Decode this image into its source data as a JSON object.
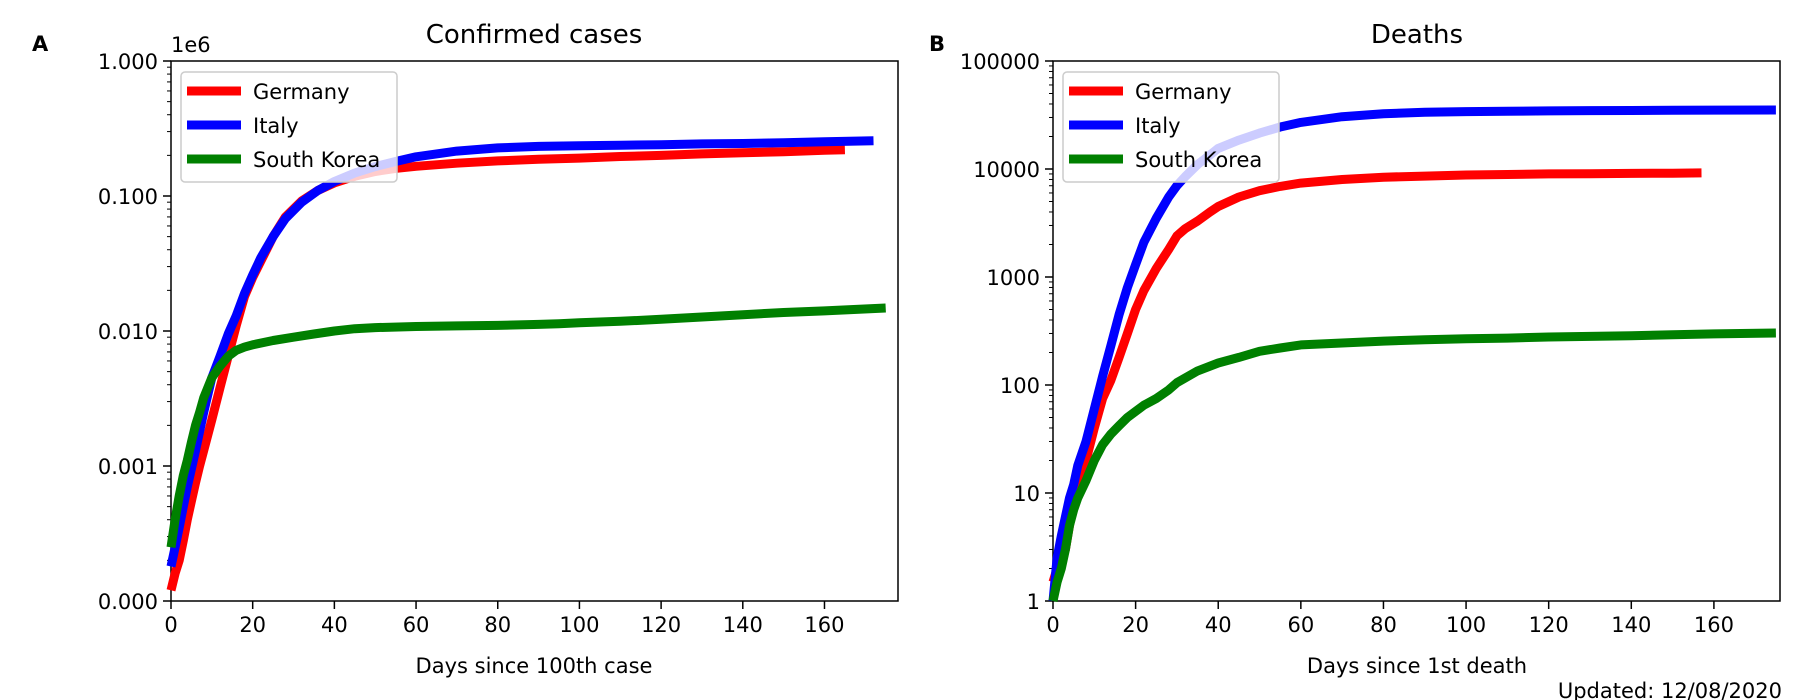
{
  "updated": "Updated: 12/08/2020",
  "colors": {
    "Germany": "#ff0000",
    "Italy": "#0000ff",
    "South Korea": "#008000"
  },
  "chart_data": [
    {
      "panel": "A",
      "type": "line",
      "title": "Confirmed cases",
      "xlabel": "Days since 100th case",
      "ylabel": "",
      "yscale": "log",
      "offset_text": "1e6",
      "xlim": [
        0,
        178
      ],
      "ylim": [
        0.0001,
        1.0
      ],
      "xticks": [
        0,
        20,
        40,
        60,
        80,
        100,
        120,
        140,
        160
      ],
      "xtick_labels": [
        "0",
        "20",
        "40",
        "60",
        "80",
        "100",
        "120",
        "140",
        "160"
      ],
      "yticks": [
        0.0001,
        0.001,
        0.01,
        0.1,
        1.0
      ],
      "ytick_labels": [
        "0.000",
        "0.001",
        "0.010",
        "0.100",
        "1.000"
      ],
      "legend": [
        "Germany",
        "Italy",
        "South Korea"
      ],
      "legend_position": "top-left",
      "series": [
        {
          "name": "Germany",
          "x": [
            0,
            1,
            2,
            3,
            4,
            5,
            6,
            7,
            8,
            10,
            12,
            14,
            16,
            18,
            20,
            22,
            25,
            28,
            32,
            36,
            40,
            45,
            50,
            55,
            60,
            70,
            80,
            90,
            100,
            110,
            120,
            130,
            140,
            150,
            160,
            165
          ],
          "y": [
            0.00012,
            0.00016,
            0.0002,
            0.00028,
            0.0004,
            0.00055,
            0.00075,
            0.001,
            0.0013,
            0.0022,
            0.0038,
            0.0065,
            0.011,
            0.018,
            0.025,
            0.033,
            0.05,
            0.07,
            0.092,
            0.11,
            0.125,
            0.14,
            0.152,
            0.16,
            0.166,
            0.175,
            0.182,
            0.187,
            0.191,
            0.196,
            0.2,
            0.205,
            0.209,
            0.213,
            0.218,
            0.22
          ]
        },
        {
          "name": "Italy",
          "x": [
            0,
            1,
            2,
            3,
            4,
            5,
            6,
            7,
            8,
            10,
            12,
            14,
            16,
            18,
            20,
            22,
            25,
            28,
            32,
            36,
            40,
            45,
            50,
            55,
            60,
            70,
            80,
            90,
            100,
            110,
            120,
            130,
            140,
            150,
            160,
            172
          ],
          "y": [
            0.00018,
            0.00025,
            0.00035,
            0.0005,
            0.0007,
            0.00095,
            0.0013,
            0.0018,
            0.0025,
            0.0045,
            0.0065,
            0.0095,
            0.013,
            0.019,
            0.026,
            0.035,
            0.05,
            0.068,
            0.09,
            0.11,
            0.128,
            0.148,
            0.165,
            0.18,
            0.195,
            0.215,
            0.227,
            0.233,
            0.236,
            0.238,
            0.24,
            0.243,
            0.245,
            0.248,
            0.252,
            0.257
          ]
        },
        {
          "name": "South Korea",
          "x": [
            0,
            1,
            2,
            3,
            4,
            5,
            6,
            7,
            8,
            10,
            12,
            14,
            16,
            18,
            20,
            25,
            30,
            35,
            40,
            45,
            50,
            60,
            70,
            80,
            90,
            95,
            100,
            110,
            120,
            130,
            140,
            150,
            160,
            175
          ],
          "y": [
            0.00025,
            0.0004,
            0.0006,
            0.00085,
            0.0011,
            0.0015,
            0.002,
            0.0025,
            0.0032,
            0.0045,
            0.0055,
            0.0065,
            0.0072,
            0.0076,
            0.0079,
            0.0085,
            0.009,
            0.0095,
            0.01,
            0.0104,
            0.0106,
            0.0108,
            0.0109,
            0.011,
            0.0112,
            0.0113,
            0.0115,
            0.0118,
            0.0122,
            0.0127,
            0.0132,
            0.0137,
            0.0141,
            0.0148
          ]
        }
      ]
    },
    {
      "panel": "B",
      "type": "line",
      "title": "Deaths",
      "xlabel": "Days since 1st death",
      "ylabel": "",
      "yscale": "log",
      "xlim": [
        0,
        176
      ],
      "ylim": [
        1,
        100000
      ],
      "xticks": [
        0,
        20,
        40,
        60,
        80,
        100,
        120,
        140,
        160
      ],
      "xtick_labels": [
        "0",
        "20",
        "40",
        "60",
        "80",
        "100",
        "120",
        "140",
        "160"
      ],
      "yticks": [
        1,
        10,
        100,
        1000,
        10000,
        100000
      ],
      "ytick_labels": [
        "1",
        "10",
        "100",
        "1000",
        "10000",
        "100000"
      ],
      "legend": [
        "Germany",
        "Italy",
        "South Korea"
      ],
      "legend_position": "top-left",
      "series": [
        {
          "name": "Germany",
          "x": [
            0,
            1,
            2,
            3,
            4,
            5,
            6,
            8,
            10,
            12,
            14,
            16,
            18,
            20,
            22,
            25,
            28,
            30,
            32,
            35,
            38,
            40,
            45,
            50,
            55,
            60,
            70,
            80,
            90,
            100,
            110,
            120,
            130,
            140,
            150,
            157
          ],
          "y": [
            1.5,
            2,
            2.5,
            3,
            5,
            8,
            12,
            20,
            40,
            75,
            110,
            180,
            300,
            500,
            750,
            1200,
            1800,
            2400,
            2800,
            3300,
            4000,
            4500,
            5500,
            6300,
            6900,
            7400,
            8000,
            8400,
            8600,
            8800,
            8900,
            9000,
            9050,
            9100,
            9150,
            9200
          ]
        },
        {
          "name": "Italy",
          "x": [
            0,
            1,
            2,
            3,
            4,
            5,
            6,
            8,
            10,
            12,
            14,
            16,
            18,
            20,
            22,
            25,
            28,
            30,
            32,
            35,
            38,
            40,
            45,
            50,
            55,
            60,
            70,
            80,
            90,
            100,
            110,
            120,
            130,
            140,
            150,
            160,
            175
          ],
          "y": [
            1,
            2.5,
            4,
            6,
            9,
            12,
            18,
            30,
            60,
            120,
            230,
            450,
            800,
            1300,
            2100,
            3500,
            5500,
            7000,
            8500,
            11000,
            13500,
            15500,
            18500,
            21500,
            24500,
            27000,
            30500,
            32500,
            33500,
            34000,
            34300,
            34500,
            34700,
            34800,
            35000,
            35100,
            35200
          ]
        },
        {
          "name": "South Korea",
          "x": [
            0,
            1,
            2,
            3,
            4,
            5,
            6,
            8,
            10,
            12,
            14,
            16,
            18,
            20,
            22,
            25,
            28,
            30,
            35,
            40,
            45,
            50,
            55,
            60,
            70,
            80,
            90,
            100,
            110,
            120,
            130,
            140,
            150,
            160,
            175
          ],
          "y": [
            1,
            1.5,
            2,
            3,
            5,
            7,
            9,
            13,
            20,
            28,
            35,
            42,
            50,
            57,
            65,
            75,
            90,
            105,
            135,
            160,
            180,
            205,
            220,
            235,
            245,
            255,
            262,
            268,
            272,
            278,
            282,
            286,
            292,
            297,
            303
          ]
        }
      ]
    }
  ]
}
